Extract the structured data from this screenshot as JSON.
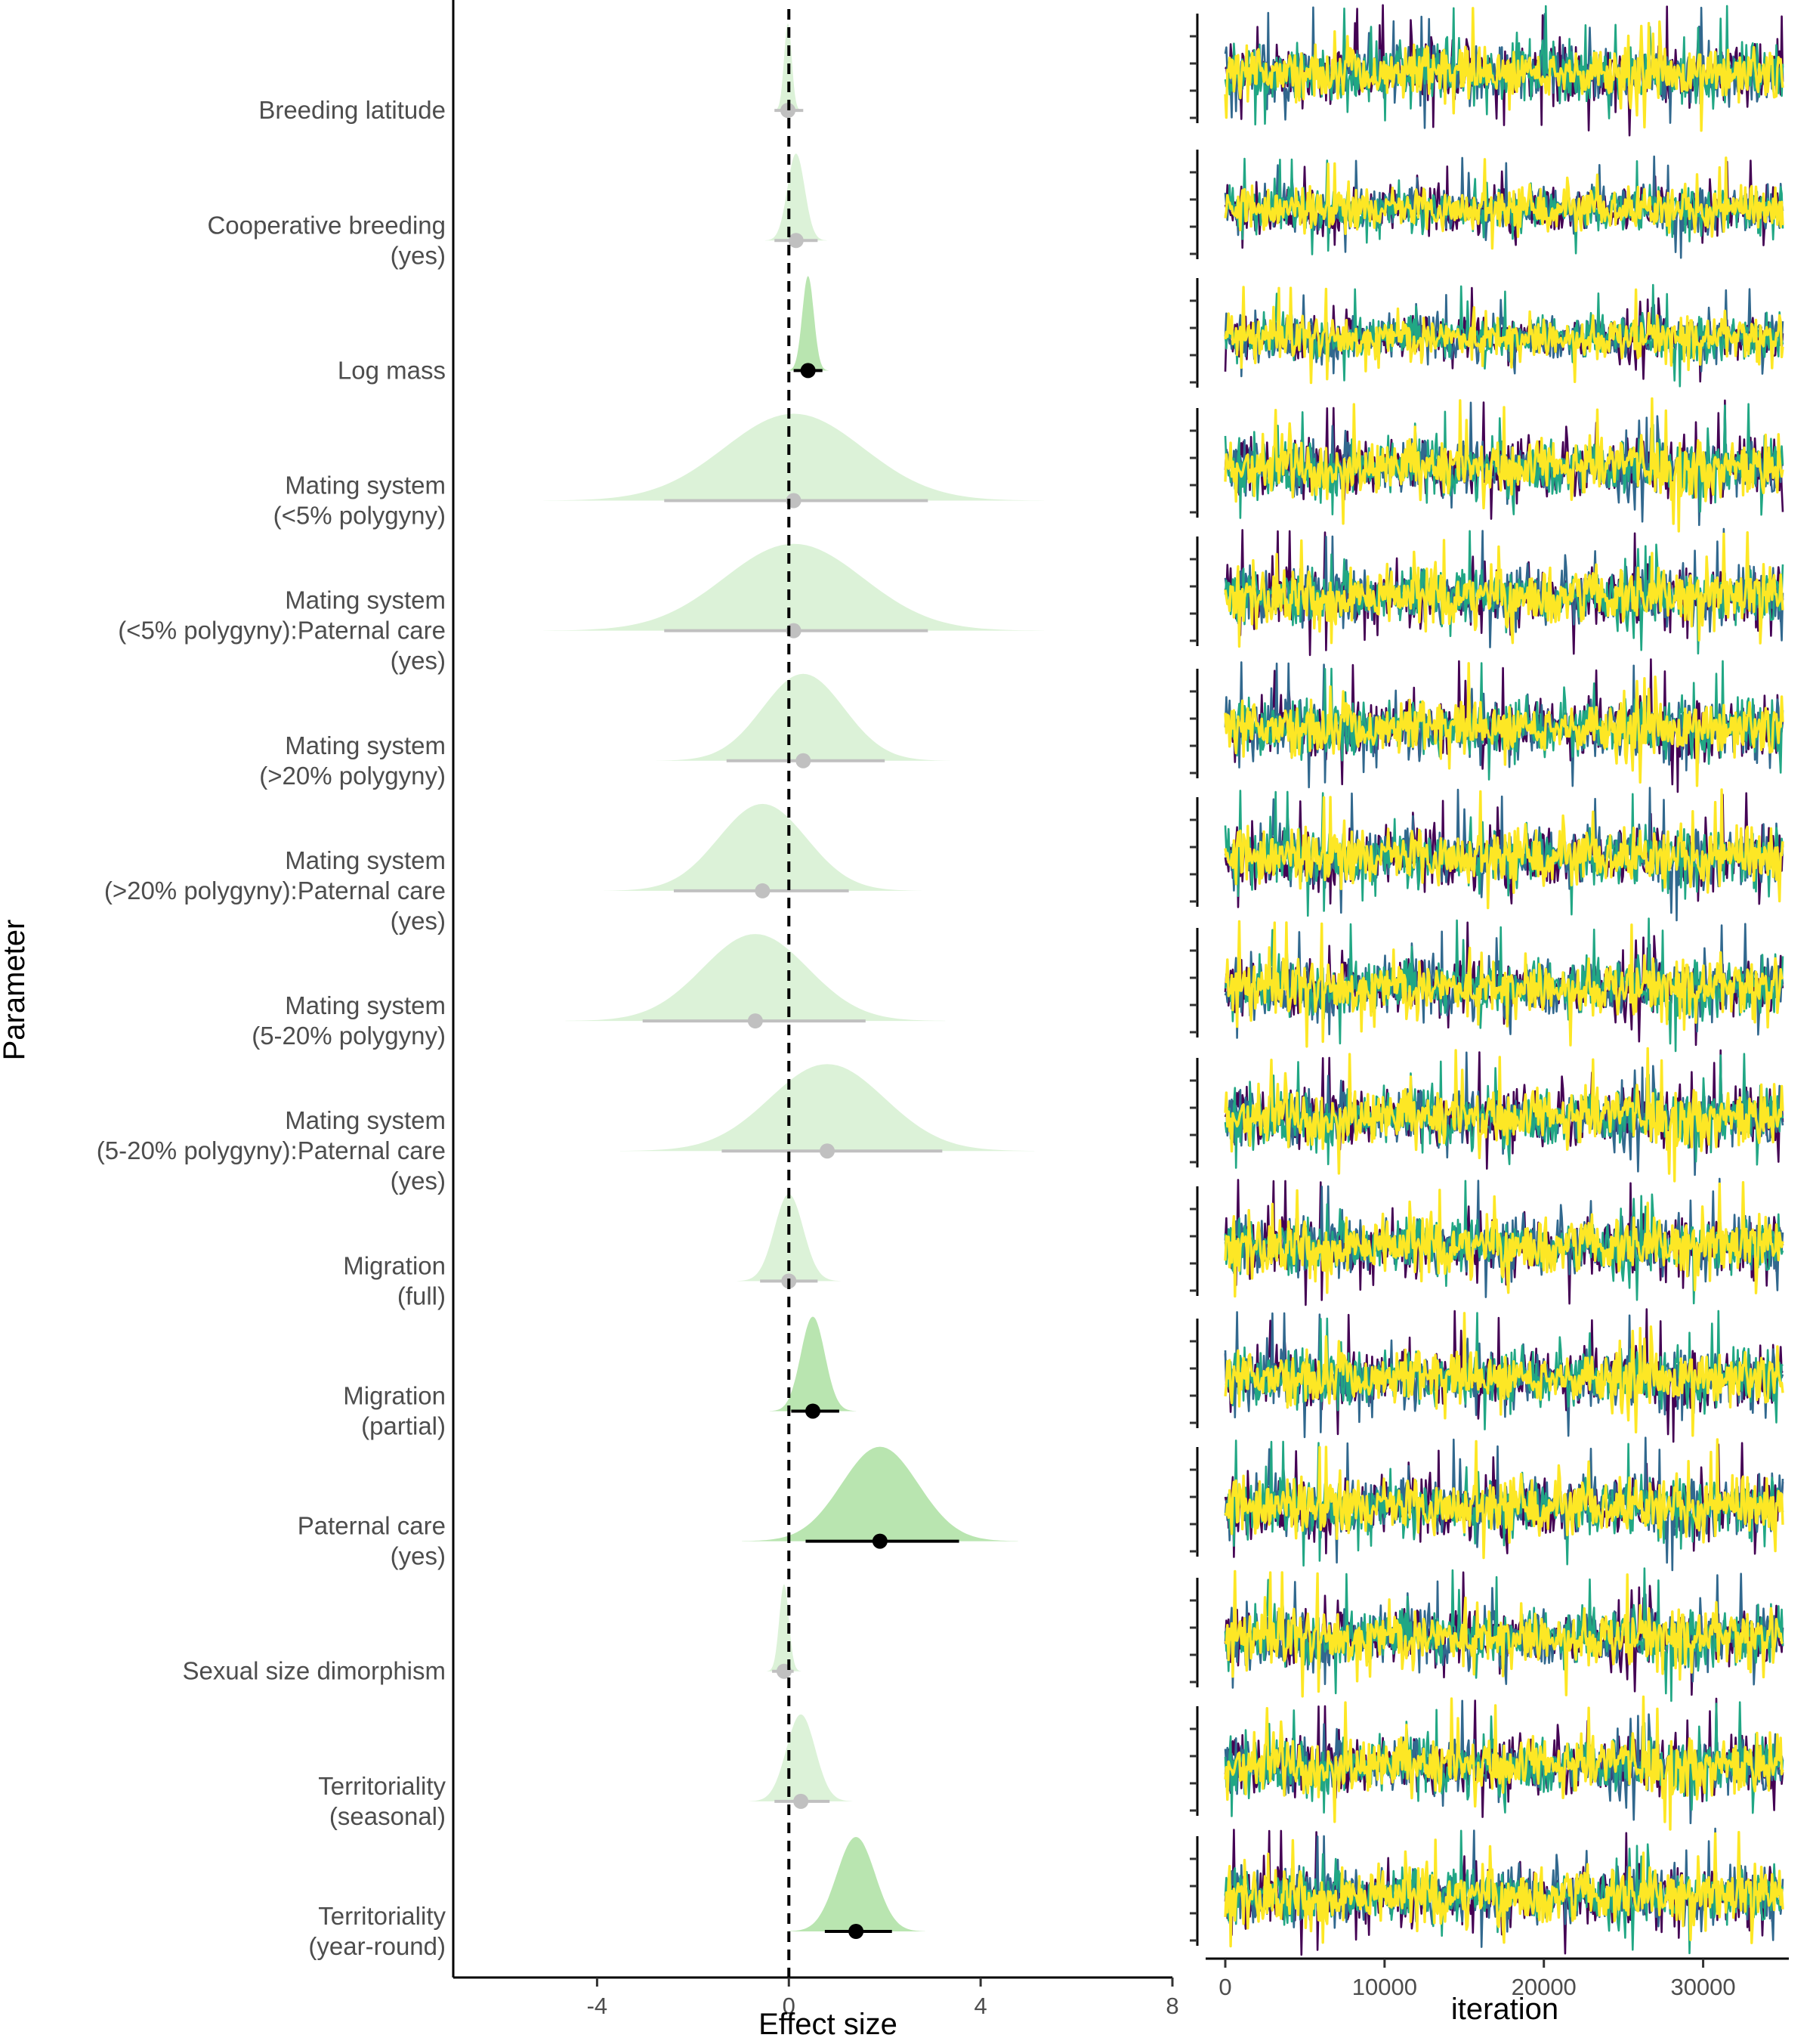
{
  "chart_data": [
    {
      "type": "area",
      "subtype": "posterior-density-with-interval",
      "xlabel": "Effect size",
      "ylabel": "Parameter",
      "xlim": [
        -7,
        8
      ],
      "xticks": [
        -4,
        0,
        4,
        8
      ],
      "reference_line": 0,
      "grid": false,
      "parameters": [
        {
          "label": "Breeding latitude",
          "label_lines": [
            "Breeding latitude"
          ],
          "median": -0.02,
          "sd": 0.08,
          "lo": -0.3,
          "hi": 0.3,
          "significant": false
        },
        {
          "label": "Cooperative breeding (yes)",
          "label_lines": [
            "Cooperative breeding",
            "(yes)"
          ],
          "median": 0.15,
          "sd": 0.18,
          "lo": -0.3,
          "hi": 0.6,
          "significant": false
        },
        {
          "label": "Log mass",
          "label_lines": [
            "Log mass"
          ],
          "median": 0.4,
          "sd": 0.12,
          "lo": 0.1,
          "hi": 0.7,
          "significant": true
        },
        {
          "label": "Mating system (<5% polygyny)",
          "label_lines": [
            "Mating system",
            "(<5% polygyny)"
          ],
          "median": 0.1,
          "sd": 1.45,
          "lo": -2.6,
          "hi": 2.9,
          "significant": false
        },
        {
          "label": "Mating system (<5% polygyny):Paternal care (yes)",
          "label_lines": [
            "Mating system",
            "(<5% polygyny):Paternal care",
            "(yes)"
          ],
          "median": 0.1,
          "sd": 1.45,
          "lo": -2.6,
          "hi": 2.9,
          "significant": false
        },
        {
          "label": "Mating system (>20% polygyny)",
          "label_lines": [
            "Mating system",
            "(>20% polygyny)"
          ],
          "median": 0.3,
          "sd": 0.85,
          "lo": -1.3,
          "hi": 2.0,
          "significant": false
        },
        {
          "label": "Mating system (>20% polygyny):Paternal care (yes)",
          "label_lines": [
            "Mating system",
            "(>20% polygyny):Paternal care",
            "(yes)"
          ],
          "median": -0.55,
          "sd": 0.92,
          "lo": -2.4,
          "hi": 1.25,
          "significant": false
        },
        {
          "label": "Mating system (5-20% polygyny)",
          "label_lines": [
            "Mating system",
            "(5-20% polygyny)"
          ],
          "median": -0.7,
          "sd": 1.1,
          "lo": -3.05,
          "hi": 1.6,
          "significant": false
        },
        {
          "label": "Mating system (5-20% polygyny):Paternal care (yes)",
          "label_lines": [
            "Mating system",
            "(5-20% polygyny):Paternal care",
            "(yes)"
          ],
          "median": 0.8,
          "sd": 1.2,
          "lo": -1.4,
          "hi": 3.2,
          "significant": false
        },
        {
          "label": "Migration (full)",
          "label_lines": [
            "Migration",
            "(full)"
          ],
          "median": 0.0,
          "sd": 0.3,
          "lo": -0.6,
          "hi": 0.6,
          "significant": false
        },
        {
          "label": "Migration (partial)",
          "label_lines": [
            "Migration",
            "(partial)"
          ],
          "median": 0.5,
          "sd": 0.25,
          "lo": 0.05,
          "hi": 1.05,
          "significant": true
        },
        {
          "label": "Paternal care (yes)",
          "label_lines": [
            "Paternal care",
            "(yes)"
          ],
          "median": 1.9,
          "sd": 0.8,
          "lo": 0.35,
          "hi": 3.55,
          "significant": true
        },
        {
          "label": "Sexual size dimorphism",
          "label_lines": [
            "Sexual size dimorphism"
          ],
          "median": -0.1,
          "sd": 0.1,
          "lo": -0.35,
          "hi": 0.1,
          "significant": false
        },
        {
          "label": "Territoriality (seasonal)",
          "label_lines": [
            "Territoriality",
            "(seasonal)"
          ],
          "median": 0.25,
          "sd": 0.3,
          "lo": -0.3,
          "hi": 0.85,
          "significant": false
        },
        {
          "label": "Territoriality (year-round)",
          "label_lines": [
            "Territoriality",
            "(year-round)"
          ],
          "median": 1.4,
          "sd": 0.4,
          "lo": 0.75,
          "hi": 2.15,
          "significant": true
        }
      ]
    },
    {
      "type": "line",
      "subtype": "mcmc-trace",
      "xlabel": "iteration",
      "xlim": [
        0,
        35000
      ],
      "xticks": [
        0,
        10000,
        20000,
        30000
      ],
      "chains": 4,
      "chain_colors": [
        "#440154",
        "#31688e",
        "#21a784",
        "#fde725"
      ],
      "panels": 15
    }
  ],
  "colors": {
    "density_fill_significant": "#b9e5b0",
    "density_fill_nonsignificant": "#dcf2d8",
    "point_significant": "#000000",
    "point_nonsignificant": "#c0c0c0",
    "interval_significant": "#000000",
    "interval_nonsignificant": "#c0c0c0",
    "label_text": "#4d4d4d",
    "axis": "#000000"
  }
}
